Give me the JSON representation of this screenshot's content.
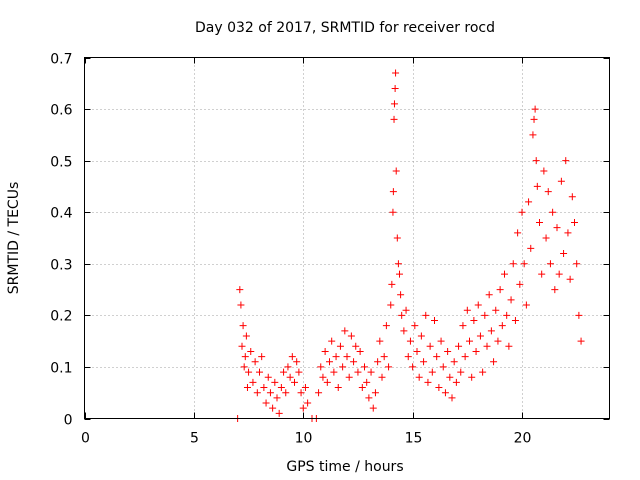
{
  "chart_data": {
    "type": "scatter",
    "title": "Day 032 of 2017, SRMTID for receiver rocd",
    "xlabel": "GPS time / hours",
    "ylabel": "SRMTID / TECUs",
    "xlim": [
      0,
      24
    ],
    "ylim": [
      0,
      0.7
    ],
    "xticks": [
      0,
      5,
      10,
      15,
      20
    ],
    "xtick_labels": [
      "0",
      "5",
      "10",
      "15",
      "20"
    ],
    "yticks": [
      0,
      0.1,
      0.2,
      0.3,
      0.4,
      0.5,
      0.6,
      0.7
    ],
    "ytick_labels": [
      "0",
      "0.1",
      "0.2",
      "0.3",
      "0.4",
      "0.5",
      "0.6",
      "0.7"
    ],
    "grid": true,
    "marker": "+",
    "marker_color": "#ff0000",
    "series": [
      {
        "name": "SRMTID",
        "points": [
          [
            7.0,
            0.0
          ],
          [
            7.1,
            0.25
          ],
          [
            7.15,
            0.22
          ],
          [
            7.2,
            0.14
          ],
          [
            7.25,
            0.18
          ],
          [
            7.3,
            0.1
          ],
          [
            7.35,
            0.12
          ],
          [
            7.4,
            0.16
          ],
          [
            7.45,
            0.06
          ],
          [
            7.5,
            0.09
          ],
          [
            7.6,
            0.13
          ],
          [
            7.7,
            0.07
          ],
          [
            7.8,
            0.11
          ],
          [
            7.9,
            0.05
          ],
          [
            8.0,
            0.09
          ],
          [
            8.1,
            0.12
          ],
          [
            8.2,
            0.06
          ],
          [
            8.3,
            0.03
          ],
          [
            8.4,
            0.08
          ],
          [
            8.5,
            0.05
          ],
          [
            8.6,
            0.02
          ],
          [
            8.7,
            0.07
          ],
          [
            8.8,
            0.04
          ],
          [
            8.9,
            0.01
          ],
          [
            9.0,
            0.06
          ],
          [
            9.1,
            0.09
          ],
          [
            9.2,
            0.05
          ],
          [
            9.3,
            0.1
          ],
          [
            9.4,
            0.08
          ],
          [
            9.5,
            0.12
          ],
          [
            9.6,
            0.07
          ],
          [
            9.7,
            0.11
          ],
          [
            9.8,
            0.09
          ],
          [
            9.9,
            0.05
          ],
          [
            10.0,
            0.02
          ],
          [
            10.1,
            0.06
          ],
          [
            10.2,
            0.03
          ],
          [
            10.4,
            0.0
          ],
          [
            10.6,
            0.0
          ],
          [
            10.7,
            0.05
          ],
          [
            10.8,
            0.1
          ],
          [
            10.9,
            0.08
          ],
          [
            11.0,
            0.13
          ],
          [
            11.1,
            0.07
          ],
          [
            11.2,
            0.11
          ],
          [
            11.3,
            0.15
          ],
          [
            11.4,
            0.09
          ],
          [
            11.5,
            0.12
          ],
          [
            11.6,
            0.06
          ],
          [
            11.7,
            0.14
          ],
          [
            11.8,
            0.1
          ],
          [
            11.9,
            0.17
          ],
          [
            12.0,
            0.12
          ],
          [
            12.1,
            0.08
          ],
          [
            12.2,
            0.16
          ],
          [
            12.3,
            0.11
          ],
          [
            12.4,
            0.14
          ],
          [
            12.5,
            0.09
          ],
          [
            12.6,
            0.13
          ],
          [
            12.7,
            0.06
          ],
          [
            12.8,
            0.1
          ],
          [
            12.9,
            0.07
          ],
          [
            13.0,
            0.04
          ],
          [
            13.1,
            0.09
          ],
          [
            13.2,
            0.02
          ],
          [
            13.3,
            0.05
          ],
          [
            13.4,
            0.11
          ],
          [
            13.5,
            0.15
          ],
          [
            13.6,
            0.08
          ],
          [
            13.7,
            0.12
          ],
          [
            13.8,
            0.18
          ],
          [
            13.9,
            0.1
          ],
          [
            14.0,
            0.22
          ],
          [
            14.05,
            0.26
          ],
          [
            14.1,
            0.4
          ],
          [
            14.12,
            0.44
          ],
          [
            14.15,
            0.58
          ],
          [
            14.17,
            0.61
          ],
          [
            14.2,
            0.64
          ],
          [
            14.22,
            0.67
          ],
          [
            14.25,
            0.48
          ],
          [
            14.3,
            0.35
          ],
          [
            14.35,
            0.3
          ],
          [
            14.4,
            0.28
          ],
          [
            14.45,
            0.24
          ],
          [
            14.5,
            0.2
          ],
          [
            14.6,
            0.17
          ],
          [
            14.7,
            0.21
          ],
          [
            14.8,
            0.12
          ],
          [
            14.9,
            0.15
          ],
          [
            15.0,
            0.1
          ],
          [
            15.1,
            0.18
          ],
          [
            15.2,
            0.13
          ],
          [
            15.3,
            0.08
          ],
          [
            15.4,
            0.16
          ],
          [
            15.5,
            0.11
          ],
          [
            15.6,
            0.2
          ],
          [
            15.7,
            0.07
          ],
          [
            15.8,
            0.14
          ],
          [
            15.9,
            0.09
          ],
          [
            16.0,
            0.19
          ],
          [
            16.1,
            0.12
          ],
          [
            16.2,
            0.06
          ],
          [
            16.3,
            0.15
          ],
          [
            16.4,
            0.1
          ],
          [
            16.5,
            0.05
          ],
          [
            16.6,
            0.13
          ],
          [
            16.7,
            0.08
          ],
          [
            16.8,
            0.04
          ],
          [
            16.9,
            0.11
          ],
          [
            17.0,
            0.07
          ],
          [
            17.1,
            0.14
          ],
          [
            17.2,
            0.09
          ],
          [
            17.3,
            0.18
          ],
          [
            17.4,
            0.12
          ],
          [
            17.5,
            0.21
          ],
          [
            17.6,
            0.15
          ],
          [
            17.7,
            0.08
          ],
          [
            17.8,
            0.19
          ],
          [
            17.9,
            0.13
          ],
          [
            18.0,
            0.22
          ],
          [
            18.1,
            0.16
          ],
          [
            18.2,
            0.09
          ],
          [
            18.3,
            0.2
          ],
          [
            18.4,
            0.14
          ],
          [
            18.5,
            0.24
          ],
          [
            18.6,
            0.17
          ],
          [
            18.7,
            0.11
          ],
          [
            18.8,
            0.21
          ],
          [
            18.9,
            0.15
          ],
          [
            19.0,
            0.25
          ],
          [
            19.1,
            0.18
          ],
          [
            19.2,
            0.28
          ],
          [
            19.3,
            0.2
          ],
          [
            19.4,
            0.14
          ],
          [
            19.5,
            0.23
          ],
          [
            19.6,
            0.3
          ],
          [
            19.7,
            0.19
          ],
          [
            19.8,
            0.36
          ],
          [
            19.9,
            0.26
          ],
          [
            20.0,
            0.4
          ],
          [
            20.1,
            0.3
          ],
          [
            20.2,
            0.22
          ],
          [
            20.3,
            0.42
          ],
          [
            20.4,
            0.33
          ],
          [
            20.5,
            0.55
          ],
          [
            20.55,
            0.58
          ],
          [
            20.6,
            0.6
          ],
          [
            20.65,
            0.5
          ],
          [
            20.7,
            0.45
          ],
          [
            20.8,
            0.38
          ],
          [
            20.9,
            0.28
          ],
          [
            21.0,
            0.48
          ],
          [
            21.1,
            0.35
          ],
          [
            21.2,
            0.44
          ],
          [
            21.3,
            0.3
          ],
          [
            21.4,
            0.4
          ],
          [
            21.5,
            0.25
          ],
          [
            21.6,
            0.37
          ],
          [
            21.7,
            0.28
          ],
          [
            21.8,
            0.46
          ],
          [
            21.9,
            0.32
          ],
          [
            22.0,
            0.5
          ],
          [
            22.1,
            0.36
          ],
          [
            22.2,
            0.27
          ],
          [
            22.3,
            0.43
          ],
          [
            22.4,
            0.38
          ],
          [
            22.5,
            0.3
          ],
          [
            22.6,
            0.2
          ],
          [
            22.7,
            0.15
          ]
        ]
      }
    ]
  }
}
